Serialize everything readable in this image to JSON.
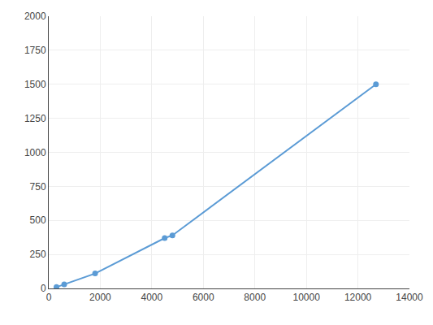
{
  "chart_data": {
    "type": "line",
    "x": [
      300,
      600,
      1800,
      4500,
      4800,
      12700
    ],
    "values": [
      10,
      30,
      110,
      370,
      390,
      1500
    ],
    "color": "#5b9bd5",
    "marker": "circle",
    "xlim": [
      0,
      14000
    ],
    "ylim": [
      0,
      2000
    ],
    "xticks": [
      0,
      2000,
      4000,
      6000,
      8000,
      10000,
      12000,
      14000
    ],
    "yticks": [
      0,
      250,
      500,
      750,
      1000,
      1250,
      1500,
      1750,
      2000
    ],
    "grid": true
  }
}
